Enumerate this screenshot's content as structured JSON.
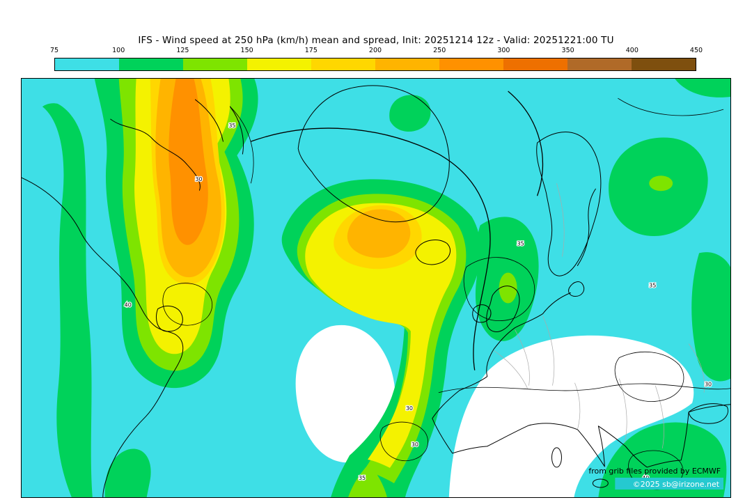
{
  "header": {
    "title": "IFS - Wind speed at 250 hPa (km/h) mean and spread, Init: 20251214 12z - Valid: 20251221:00 TU"
  },
  "colorbar": {
    "ticks": [
      "75",
      "100",
      "125",
      "150",
      "175",
      "200",
      "250",
      "300",
      "350",
      "400",
      "450"
    ],
    "colors": [
      "#3EDFE6",
      "#00D25A",
      "#7EE400",
      "#F4F200",
      "#FFD700",
      "#FFB400",
      "#FF9100",
      "#EE7000",
      "#B06A28",
      "#7E4F0E"
    ]
  },
  "map": {
    "spread_labels": [
      "35",
      "30",
      "40",
      "35",
      "30",
      "35",
      "30",
      "35",
      "40",
      "30"
    ]
  },
  "attribution": {
    "line1": "from grib files provided by ECMWF",
    "line2": "©2025 sb@irizone.net"
  }
}
